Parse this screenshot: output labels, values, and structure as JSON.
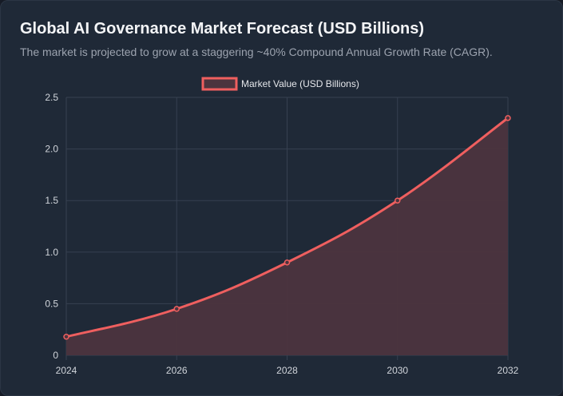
{
  "header": {
    "title": "Global AI Governance Market Forecast (USD Billions)",
    "subtitle": "The market is projected to grow at a staggering ~40% Compound Annual Growth Rate (CAGR)."
  },
  "chart_data": {
    "type": "area",
    "x": [
      2024,
      2026,
      2028,
      2030,
      2032
    ],
    "series": [
      {
        "name": "Market Value (USD Billions)",
        "values": [
          0.18,
          0.45,
          0.9,
          1.5,
          2.3
        ]
      }
    ],
    "x_ticks": [
      "2024",
      "2026",
      "2028",
      "2030",
      "2032"
    ],
    "y_ticks": [
      "0",
      "0.5",
      "1.0",
      "1.5",
      "2.0",
      "2.5"
    ],
    "ylim": [
      0,
      2.5
    ],
    "grid": true,
    "legend_position": "top-center",
    "colors": {
      "line": "#ef5f5f",
      "fill": "#4c343e",
      "grid": "#374151"
    }
  }
}
